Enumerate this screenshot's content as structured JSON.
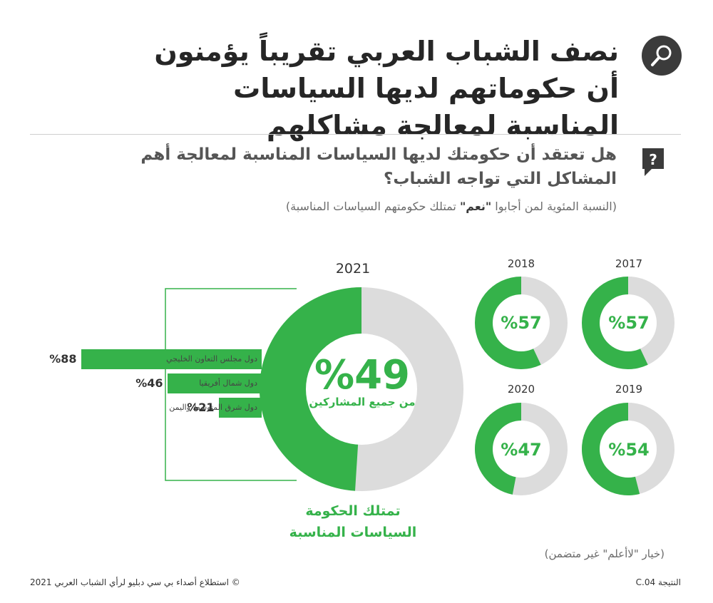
{
  "title": "نصف الشباب العربي تقريباً يؤمنون أن حكوماتهم لديها السياسات المناسبة لمعالجة مشاكلهم",
  "question": "هل تعتقد أن حكومتك لديها السياسات المناسبة لمعالجة أهم المشاكل التي تواجه الشباب؟",
  "subtitle": {
    "before": "(النسبة المئوية لمن أجابوا ",
    "highlight": "\"نعم\"",
    "after": " تمتلك حكومتهم السياسات المناسبة)"
  },
  "main_chart": {
    "year": "2021",
    "percent_label": "%49",
    "sub_label": "من جميع المشاركين",
    "caption": "تمتلك الحكومة السياسات المناسبة"
  },
  "note": "(خيار \"لاأعلم\" غير متضمن)",
  "footer": {
    "source": "©  استطلاع أصداء بي سي دبليو لرأي الشباب العربي 2021",
    "finding": "النتيجة C.04"
  },
  "colors": {
    "accent": "#35b24a",
    "remainder": "#dcdcdc",
    "icon_dark": "#3b3b3b"
  },
  "icons": {
    "title": "magnifier-icon",
    "question": "question-bubble-icon"
  },
  "chart_data": [
    {
      "type": "pie",
      "title": "2021",
      "categories": [
        "تمتلك الحكومة السياسات المناسبة"
      ],
      "values": [
        49
      ],
      "labels": [
        "%49"
      ]
    },
    {
      "type": "bar",
      "categories": [
        "دول مجلس التعاون الخليجي",
        "دول شمال أفريقيا",
        "دول شرق المتوسط واليمن"
      ],
      "values": [
        88,
        46,
        21
      ],
      "labels": [
        "%88",
        "%46",
        "%21"
      ],
      "xlim": [
        0,
        100
      ]
    },
    {
      "type": "pie",
      "series": [
        {
          "name": "2017",
          "value": 57,
          "label": "%57"
        },
        {
          "name": "2018",
          "value": 57,
          "label": "%57"
        },
        {
          "name": "2019",
          "value": 54,
          "label": "%54"
        },
        {
          "name": "2020",
          "value": 47,
          "label": "%47"
        }
      ]
    }
  ]
}
